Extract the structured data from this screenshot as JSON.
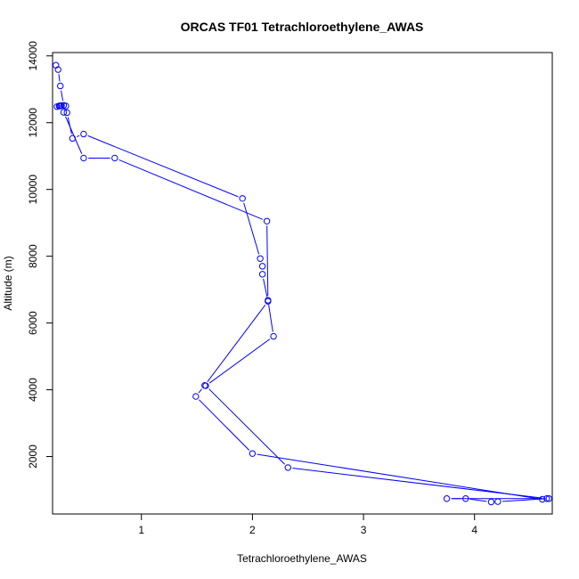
{
  "chart_data": {
    "type": "line",
    "title": "ORCAS TF01 Tetrachloroethylene_AWAS",
    "xlabel": "Tetrachloroethylene_AWAS",
    "ylabel": "Altitude (m)",
    "xlim": [
      0.2,
      4.7
    ],
    "ylim": [
      280,
      14100
    ],
    "xticks": [
      1,
      2,
      3,
      4
    ],
    "yticks": [
      2000,
      4000,
      6000,
      8000,
      10000,
      12000,
      14000
    ],
    "grid": false,
    "legend": "none",
    "series": [
      {
        "color": "#0000ff",
        "marker": "open-circle",
        "points": [
          {
            "x": 0.23,
            "y": 13720
          },
          {
            "x": 0.25,
            "y": 13590
          },
          {
            "x": 0.27,
            "y": 13100
          },
          {
            "x": 0.3,
            "y": 12520
          },
          {
            "x": 0.27,
            "y": 12500
          },
          {
            "x": 0.24,
            "y": 12480
          },
          {
            "x": 0.26,
            "y": 12500
          },
          {
            "x": 0.28,
            "y": 12510
          },
          {
            "x": 0.32,
            "y": 12500
          },
          {
            "x": 0.33,
            "y": 12300
          },
          {
            "x": 0.38,
            "y": 11530
          },
          {
            "x": 0.48,
            "y": 11660
          },
          {
            "x": 1.91,
            "y": 9730
          },
          {
            "x": 2.07,
            "y": 7930
          },
          {
            "x": 2.09,
            "y": 7700
          },
          {
            "x": 2.09,
            "y": 7460
          },
          {
            "x": 2.14,
            "y": 6650
          },
          {
            "x": 1.57,
            "y": 4130
          },
          {
            "x": 1.49,
            "y": 3800
          },
          {
            "x": 2.0,
            "y": 2090
          },
          {
            "x": 4.61,
            "y": 720
          },
          {
            "x": 4.67,
            "y": 740
          },
          {
            "x": 4.21,
            "y": 650
          },
          {
            "x": 4.15,
            "y": 640
          },
          {
            "x": 3.92,
            "y": 740
          },
          {
            "x": 3.75,
            "y": 740
          },
          {
            "x": 4.65,
            "y": 740
          },
          {
            "x": 2.32,
            "y": 1670
          },
          {
            "x": 1.58,
            "y": 4120
          },
          {
            "x": 2.19,
            "y": 5600
          },
          {
            "x": 2.14,
            "y": 6680
          },
          {
            "x": 2.13,
            "y": 9050
          },
          {
            "x": 0.76,
            "y": 10940
          },
          {
            "x": 0.48,
            "y": 10940
          },
          {
            "x": 0.3,
            "y": 12310
          },
          {
            "x": 0.28,
            "y": 12510
          },
          {
            "x": 0.26,
            "y": 12500
          }
        ]
      }
    ]
  }
}
